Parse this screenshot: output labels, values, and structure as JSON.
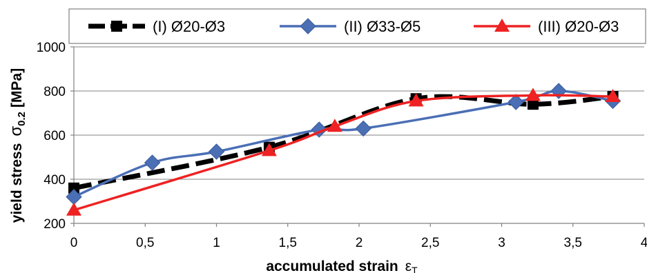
{
  "chart_data": {
    "type": "line",
    "xlabel": "accumulated strain",
    "xlabel_symbol": "ε",
    "xlabel_subscript": "T",
    "ylabel": "yield stress",
    "ylabel_symbol": "σ",
    "ylabel_subscript": "0.2",
    "ylabel_unit": "[MPa]",
    "xlim": [
      0,
      4
    ],
    "ylim": [
      200,
      1000
    ],
    "x_ticks": [
      "0",
      "0,5",
      "1",
      "1,5",
      "2",
      "2,5",
      "3",
      "3,5",
      "4"
    ],
    "x_tick_values": [
      0,
      0.5,
      1,
      1.5,
      2,
      2.5,
      3,
      3.5,
      4
    ],
    "y_ticks": [
      "200",
      "400",
      "600",
      "800",
      "1000"
    ],
    "y_tick_values": [
      200,
      400,
      600,
      800,
      1000
    ],
    "grid": "horizontal",
    "legend_position": "top",
    "series": [
      {
        "name": "(I) Ø20-Ø3",
        "color": "#000000",
        "marker": "square",
        "line_style": "dashed",
        "x": [
          0,
          1.37,
          2.4,
          3.22,
          3.78
        ],
        "y": [
          360,
          545,
          765,
          740,
          775
        ]
      },
      {
        "name": "(II) Ø33-Ø5",
        "color": "#4a6fb5",
        "marker": "diamond",
        "line_style": "solid",
        "x": [
          0,
          0.55,
          1.0,
          1.72,
          2.03,
          3.1,
          3.4,
          3.78
        ],
        "y": [
          320,
          475,
          525,
          625,
          630,
          750,
          800,
          755
        ]
      },
      {
        "name": "(III) Ø20-Ø3",
        "color": "#ee2222",
        "marker": "triangle",
        "line_style": "solid",
        "x": [
          0,
          1.37,
          1.83,
          2.4,
          3.22,
          3.78
        ],
        "y": [
          260,
          530,
          640,
          755,
          780,
          775
        ]
      }
    ]
  }
}
